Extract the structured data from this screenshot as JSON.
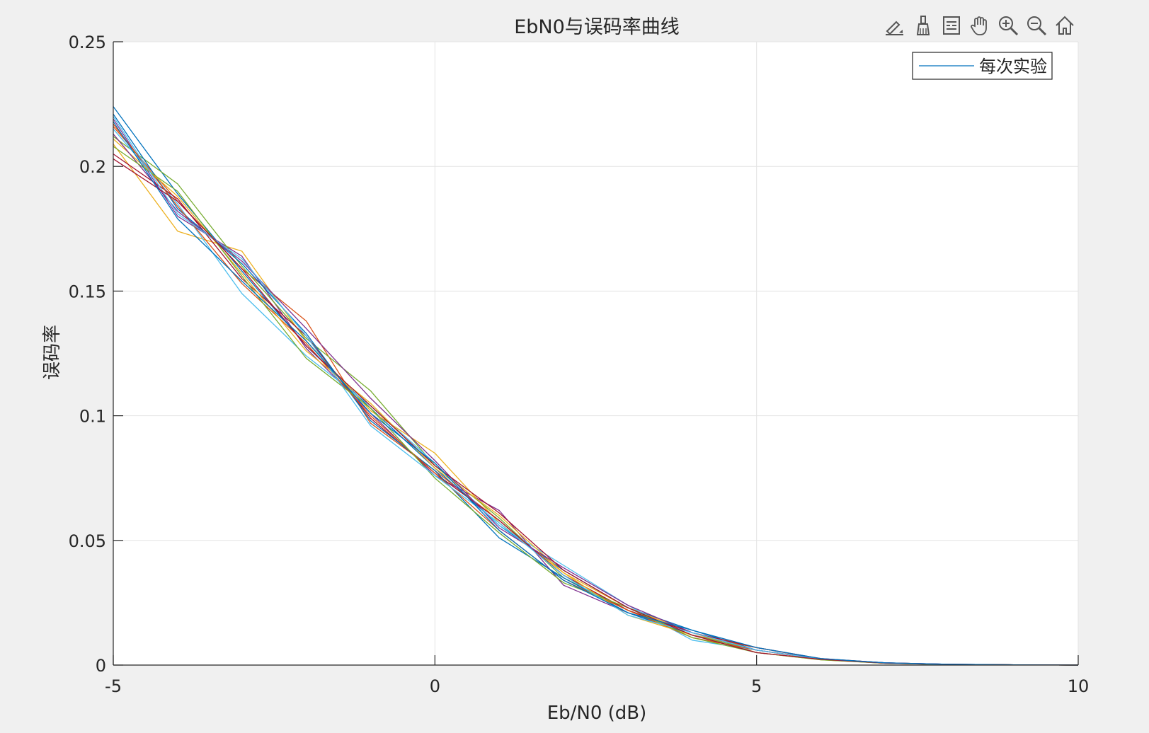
{
  "figure": {
    "background": "#f0f0f0"
  },
  "toolbar": {
    "icons": [
      "data-tips-icon",
      "brush-icon",
      "legend-toggle-icon",
      "pan-hand-icon",
      "zoom-in-icon",
      "zoom-out-icon",
      "home-icon"
    ]
  },
  "chart_data": {
    "type": "line",
    "title": "EbN0与误码率曲线",
    "xlabel": "Eb/N0 (dB)",
    "ylabel": "误码率",
    "xlim": [
      -5,
      10
    ],
    "ylim": [
      0,
      0.25
    ],
    "x": [
      -5,
      -4,
      -3,
      -2,
      -1,
      0,
      1,
      2,
      3,
      4,
      5,
      6,
      7,
      8,
      9,
      10
    ],
    "xticks": [
      "-5",
      "0",
      "5",
      "10"
    ],
    "yticks": [
      "0",
      "0.05",
      "0.1",
      "0.15",
      "0.2",
      "0.25"
    ],
    "grid": true,
    "legend": {
      "position": "top-right",
      "entries": [
        "每次实验"
      ]
    },
    "series_colors": [
      "#0072BD",
      "#D95319",
      "#EDB120",
      "#7E2F8E",
      "#77AC30",
      "#4DBEEE",
      "#A2142F"
    ],
    "series": [
      {
        "values": [
          0.224,
          0.189,
          0.158,
          0.128,
          0.103,
          0.079,
          0.056,
          0.038,
          0.023,
          0.014,
          0.006,
          0.0025,
          0.0009,
          0.0003,
          0.0001,
          0.0
        ]
      },
      {
        "values": [
          0.216,
          0.186,
          0.159,
          0.138,
          0.097,
          0.078,
          0.058,
          0.036,
          0.022,
          0.012,
          0.007,
          0.0024,
          0.0008,
          0.0002,
          0.0001,
          0.0
        ]
      },
      {
        "values": [
          0.209,
          0.174,
          0.166,
          0.13,
          0.102,
          0.085,
          0.057,
          0.037,
          0.023,
          0.013,
          0.005,
          0.0022,
          0.0007,
          0.0002,
          0.0001,
          0.0
        ]
      },
      {
        "values": [
          0.219,
          0.18,
          0.164,
          0.127,
          0.101,
          0.076,
          0.062,
          0.032,
          0.021,
          0.012,
          0.006,
          0.0023,
          0.0008,
          0.0002,
          0.0001,
          0.0
        ]
      },
      {
        "values": [
          0.212,
          0.193,
          0.16,
          0.131,
          0.11,
          0.08,
          0.059,
          0.035,
          0.022,
          0.012,
          0.006,
          0.0024,
          0.0008,
          0.0002,
          0.0001,
          0.0
        ]
      },
      {
        "values": [
          0.215,
          0.185,
          0.149,
          0.124,
          0.104,
          0.081,
          0.056,
          0.04,
          0.024,
          0.01,
          0.006,
          0.0025,
          0.0009,
          0.0003,
          0.0001,
          0.0
        ]
      },
      {
        "values": [
          0.205,
          0.187,
          0.155,
          0.132,
          0.099,
          0.077,
          0.058,
          0.036,
          0.022,
          0.013,
          0.007,
          0.0026,
          0.0009,
          0.0003,
          0.0001,
          0.0
        ]
      },
      {
        "values": [
          0.221,
          0.183,
          0.161,
          0.133,
          0.098,
          0.078,
          0.051,
          0.035,
          0.021,
          0.012,
          0.005,
          0.0022,
          0.0008,
          0.0002,
          0.0001,
          0.0
        ]
      },
      {
        "values": [
          0.217,
          0.184,
          0.153,
          0.129,
          0.1,
          0.077,
          0.054,
          0.034,
          0.022,
          0.011,
          0.006,
          0.0022,
          0.0007,
          0.0002,
          0.0001,
          0.0
        ]
      },
      {
        "values": [
          0.211,
          0.188,
          0.157,
          0.126,
          0.105,
          0.079,
          0.06,
          0.037,
          0.02,
          0.012,
          0.005,
          0.0021,
          0.0008,
          0.0002,
          0.0001,
          0.0
        ]
      },
      {
        "values": [
          0.213,
          0.182,
          0.162,
          0.135,
          0.107,
          0.082,
          0.055,
          0.039,
          0.024,
          0.013,
          0.006,
          0.0025,
          0.0009,
          0.0003,
          0.0001,
          0.0
        ]
      },
      {
        "values": [
          0.208,
          0.19,
          0.156,
          0.123,
          0.103,
          0.075,
          0.053,
          0.033,
          0.023,
          0.011,
          0.005,
          0.0021,
          0.0007,
          0.0002,
          0.0001,
          0.0
        ]
      },
      {
        "values": [
          0.22,
          0.181,
          0.163,
          0.132,
          0.096,
          0.076,
          0.057,
          0.036,
          0.02,
          0.013,
          0.006,
          0.0024,
          0.0008,
          0.0002,
          0.0001,
          0.0
        ]
      },
      {
        "values": [
          0.203,
          0.186,
          0.159,
          0.128,
          0.104,
          0.08,
          0.061,
          0.038,
          0.023,
          0.012,
          0.005,
          0.0023,
          0.0008,
          0.0003,
          0.0001,
          0.0
        ]
      },
      {
        "values": [
          0.218,
          0.179,
          0.154,
          0.13,
          0.101,
          0.081,
          0.054,
          0.034,
          0.021,
          0.014,
          0.007,
          0.0026,
          0.0009,
          0.0003,
          0.0001,
          0.0
        ]
      }
    ]
  }
}
